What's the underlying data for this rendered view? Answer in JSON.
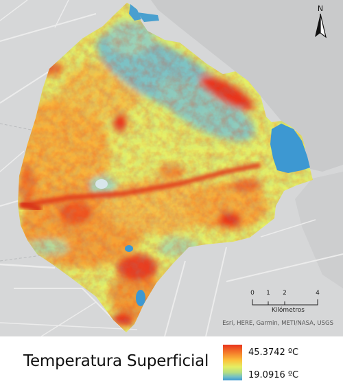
{
  "map": {
    "north_label": "N",
    "scale": {
      "ticks": [
        "0",
        "1",
        "2",
        "4"
      ],
      "unit": "Kilómetros"
    },
    "attribution": "Esri, HERE, Garmin, METI/NASA, USGS"
  },
  "legend": {
    "title": "Temperatura Superficial",
    "max": "45.3742 ºC",
    "min": "19.0916 ºC"
  },
  "colors": {
    "basemap_land": "#d6d7d8",
    "basemap_water": "#c9cacb",
    "road": "#ececec",
    "hot": "#e8341c",
    "warm": "#fbc23c",
    "mild": "#e5ee63",
    "cool": "#3d98d2"
  }
}
